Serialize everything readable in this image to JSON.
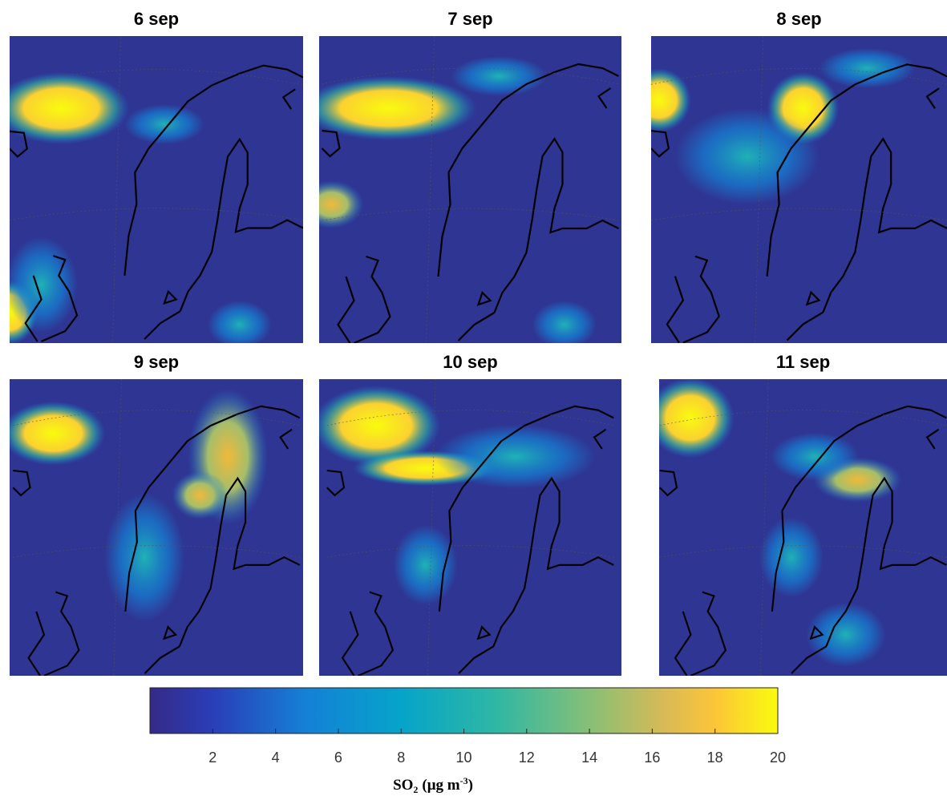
{
  "panels": [
    {
      "title": "6 sep"
    },
    {
      "title": "7 sep"
    },
    {
      "title": "8 sep"
    },
    {
      "title": "9 sep"
    },
    {
      "title": "10 sep"
    },
    {
      "title": "11 sep"
    }
  ],
  "colorbar": {
    "clim": [
      0,
      20
    ],
    "ticks": [
      2,
      4,
      6,
      8,
      10,
      12,
      14,
      16,
      18,
      20
    ],
    "label": {
      "main": "SO",
      "sub": "2",
      "unit": "(μg m",
      "sup": "-3",
      "end": ")"
    }
  }
}
